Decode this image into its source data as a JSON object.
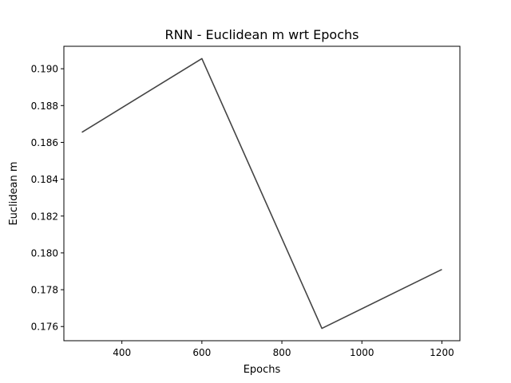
{
  "chart_data": {
    "type": "line",
    "title": "RNN - Euclidean m wrt Epochs",
    "xlabel": "Epochs",
    "ylabel": "Euclidean m",
    "x": [
      300,
      600,
      900,
      1200
    ],
    "series": [
      {
        "values": [
          0.18655,
          0.19055,
          0.1759,
          0.1791
        ],
        "color": "#444444"
      }
    ],
    "xlim": [
      255,
      1245
    ],
    "ylim": [
      0.17523,
      0.19122
    ],
    "xticks": [
      400,
      600,
      800,
      1000,
      1200
    ],
    "yticks": [
      0.176,
      0.178,
      0.18,
      0.182,
      0.184,
      0.186,
      0.188,
      0.19
    ],
    "xtick_labels": [
      "400",
      "600",
      "800",
      "1000",
      "1200"
    ],
    "ytick_labels": [
      "0.176",
      "0.178",
      "0.180",
      "0.182",
      "0.184",
      "0.186",
      "0.188",
      "0.190"
    ],
    "grid": false,
    "legend": null
  }
}
